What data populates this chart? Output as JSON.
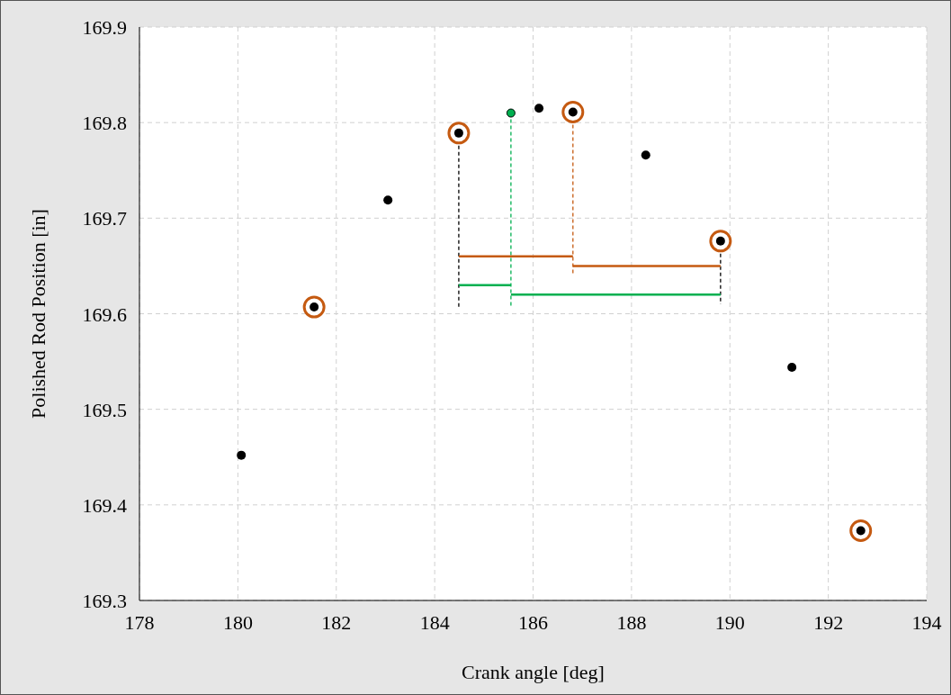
{
  "chart_data": {
    "type": "scatter",
    "xlabel": "Crank angle [deg]",
    "ylabel": "Polished Rod Position [in]",
    "xlim": [
      178,
      194
    ],
    "ylim": [
      169.3,
      169.9
    ],
    "xticks": [
      178,
      180,
      182,
      184,
      186,
      188,
      190,
      192,
      194
    ],
    "yticks": [
      169.3,
      169.4,
      169.5,
      169.6,
      169.7,
      169.8,
      169.9
    ],
    "grid": true,
    "marker": "none",
    "series": [
      {
        "type": "scatter",
        "marker": "circle",
        "color": "#c55a11",
        "x": [
          181.55,
          184.49,
          186.81,
          189.81,
          192.66
        ],
        "values": [
          169.607,
          169.789,
          169.811,
          169.676,
          169.373
        ]
      },
      {
        "type": "scatter",
        "marker": "circle",
        "color": "#000000",
        "x": [
          180.07,
          181.55,
          183.05,
          184.49,
          186.12,
          186.81,
          188.29,
          189.81,
          191.26,
          192.66
        ],
        "values": [
          169.452,
          169.607,
          169.719,
          169.789,
          169.815,
          169.811,
          169.766,
          169.676,
          169.544,
          169.373
        ]
      },
      {
        "type": "scatter",
        "marker": "circle",
        "color": "#00b050",
        "x": [
          185.55
        ],
        "values": [
          169.81
        ]
      },
      {
        "type": "line",
        "line_style": "dashed",
        "color": "#000000",
        "x": [
          184.49,
          184.49
        ],
        "values": [
          169.789,
          169.606
        ]
      },
      {
        "type": "line",
        "line_style": "dashed",
        "color": "#00b050",
        "x": [
          185.55,
          185.55
        ],
        "values": [
          169.81,
          169.606
        ]
      },
      {
        "type": "line",
        "line_style": "dashed",
        "color": "#c55a11",
        "x": [
          186.81,
          186.81
        ],
        "values": [
          169.811,
          169.64
        ]
      },
      {
        "type": "line",
        "line_style": "dashed",
        "color": "#000000",
        "x": [
          189.81,
          189.81
        ],
        "values": [
          169.676,
          169.61
        ]
      },
      {
        "type": "line",
        "line_style": "solid",
        "color": "#c55a11",
        "x": [
          184.49,
          186.81
        ],
        "values": [
          169.66,
          169.66
        ]
      },
      {
        "type": "line",
        "line_style": "solid",
        "color": "#c55a11",
        "x": [
          186.81,
          189.81
        ],
        "values": [
          169.65,
          169.65
        ]
      },
      {
        "type": "line",
        "line_style": "solid",
        "color": "#00b050",
        "x": [
          184.49,
          185.55
        ],
        "values": [
          169.63,
          169.63
        ]
      },
      {
        "type": "line",
        "line_style": "solid",
        "color": "#00b050",
        "x": [
          185.55,
          189.81
        ],
        "values": [
          169.62,
          169.62
        ]
      }
    ]
  }
}
